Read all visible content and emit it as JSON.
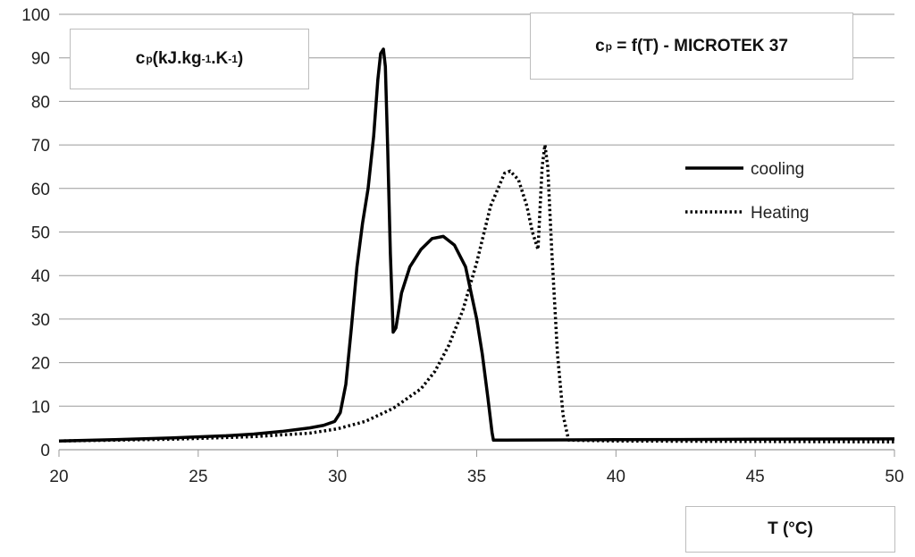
{
  "chart_data": {
    "type": "line",
    "title": {
      "prefix": "c",
      "sub": "p",
      "rest": " = f(T) - MICROTEK 37"
    },
    "ylabel": {
      "c": "c",
      "sub": "p",
      "p1": " (kJ.kg",
      "sup1": "-1",
      "p2": ".K",
      "sup2": "-1",
      "p3": ")"
    },
    "xlabel": "T (°C)",
    "xlim": [
      20,
      50
    ],
    "ylim": [
      0,
      100
    ],
    "x_ticks": [
      "20",
      "25",
      "30",
      "35",
      "40",
      "45",
      "50"
    ],
    "y_ticks": [
      "0",
      "10",
      "20",
      "30",
      "40",
      "50",
      "60",
      "70",
      "80",
      "90",
      "100"
    ],
    "grid": "horizontal",
    "legend_position": "right",
    "series": [
      {
        "name": "cooling",
        "style": "solid",
        "color": "#000000",
        "x": [
          20,
          22,
          24,
          26,
          27,
          28,
          29,
          29.5,
          29.9,
          30.1,
          30.3,
          30.5,
          30.7,
          30.9,
          31.1,
          31.3,
          31.45,
          31.55,
          31.65,
          31.72,
          31.8,
          31.9,
          32.0,
          32.1,
          32.3,
          32.6,
          33.0,
          33.4,
          33.8,
          34.2,
          34.6,
          35.0,
          35.2,
          35.4,
          35.55,
          35.6,
          36,
          40,
          45,
          50
        ],
        "y": [
          2,
          2.3,
          2.7,
          3.2,
          3.6,
          4.2,
          5.0,
          5.6,
          6.5,
          8.5,
          15,
          28,
          42,
          52,
          60,
          72,
          85,
          91,
          92,
          88,
          70,
          45,
          27,
          28,
          36,
          42,
          46,
          48.5,
          49,
          47,
          42,
          30,
          22,
          12,
          4,
          2.2,
          2.2,
          2.3,
          2.4,
          2.5
        ]
      },
      {
        "name": "Heating",
        "style": "dotted",
        "color": "#000000",
        "x": [
          20,
          24,
          27,
          29,
          30,
          31,
          32,
          33,
          33.5,
          34,
          34.5,
          35,
          35.5,
          36,
          36.2,
          36.5,
          36.8,
          37.0,
          37.2,
          37.35,
          37.45,
          37.55,
          37.7,
          37.9,
          38.1,
          38.3,
          40,
          45,
          50
        ],
        "y": [
          2,
          2.4,
          3.0,
          3.8,
          4.8,
          6.5,
          9.5,
          14,
          18,
          24,
          32,
          43,
          56,
          63.5,
          64,
          62,
          56,
          50,
          46,
          65,
          70,
          65,
          45,
          22,
          8,
          2.2,
          2.0,
          1.9,
          1.8
        ]
      }
    ]
  }
}
